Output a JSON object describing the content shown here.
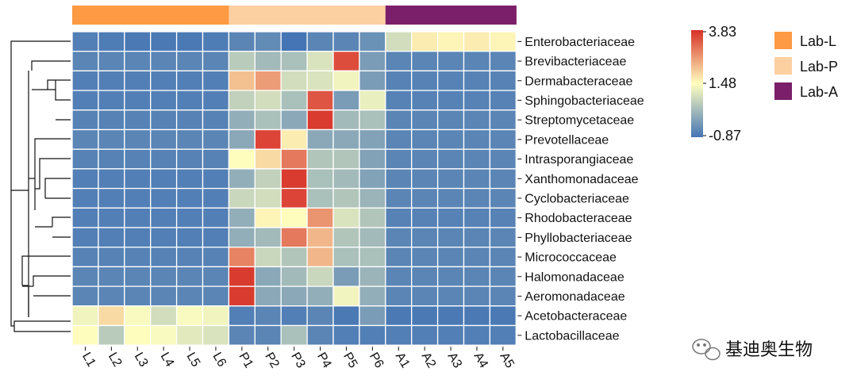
{
  "chart_data": {
    "type": "heatmap",
    "title": "",
    "columns": [
      "L1",
      "L2",
      "L3",
      "L4",
      "L5",
      "L6",
      "P1",
      "P2",
      "P3",
      "P4",
      "P5",
      "P6",
      "A1",
      "A2",
      "A3",
      "A4",
      "A5"
    ],
    "column_groups": [
      "Lab-L",
      "Lab-L",
      "Lab-L",
      "Lab-L",
      "Lab-L",
      "Lab-L",
      "Lab-P",
      "Lab-P",
      "Lab-P",
      "Lab-P",
      "Lab-P",
      "Lab-P",
      "Lab-A",
      "Lab-A",
      "Lab-A",
      "Lab-A",
      "Lab-A"
    ],
    "rows": [
      "Enterobacteriaceae",
      "Brevibacteriaceae",
      "Dermabacteraceae",
      "Sphingobacteriaceae",
      "Streptomycetaceae",
      "Prevotellaceae",
      "Intrasporangiaceae",
      "Xanthomonadaceae",
      "Cyclobacteriaceae",
      "Rhodobacteraceae",
      "Phyllobacteriaceae",
      "Micrococcaceae",
      "Halomonadaceae",
      "Aeromonadaceae",
      "Acetobacteraceae",
      "Lactobacillaceae"
    ],
    "values": [
      [
        -0.7,
        -0.75,
        -0.8,
        -0.8,
        -0.8,
        -0.75,
        -0.6,
        -0.5,
        -0.87,
        -0.6,
        -0.6,
        -0.4,
        0.9,
        1.7,
        1.6,
        1.7,
        1.6
      ],
      [
        -0.6,
        -0.6,
        -0.6,
        -0.6,
        -0.6,
        -0.6,
        0.6,
        0.3,
        0.4,
        1.0,
        3.5,
        -0.2,
        -0.6,
        -0.6,
        -0.6,
        -0.6,
        -0.6
      ],
      [
        -0.7,
        -0.7,
        -0.7,
        -0.7,
        -0.7,
        -0.7,
        2.2,
        2.6,
        0.9,
        1.0,
        1.3,
        -0.2,
        -0.65,
        -0.65,
        -0.65,
        -0.65,
        -0.65
      ],
      [
        -0.7,
        -0.7,
        -0.7,
        -0.7,
        -0.7,
        -0.7,
        0.7,
        0.9,
        0.4,
        3.4,
        -0.2,
        1.2,
        -0.65,
        -0.65,
        -0.65,
        -0.65,
        -0.65
      ],
      [
        -0.65,
        -0.65,
        -0.65,
        -0.65,
        -0.65,
        -0.65,
        0.1,
        0.4,
        0.0,
        3.7,
        0.3,
        0.4,
        -0.6,
        -0.6,
        -0.6,
        -0.6,
        -0.6
      ],
      [
        -0.6,
        -0.6,
        -0.6,
        -0.6,
        -0.6,
        -0.6,
        0.0,
        3.6,
        1.7,
        0.0,
        0.0,
        -0.1,
        -0.6,
        -0.6,
        -0.6,
        -0.6,
        -0.6
      ],
      [
        -0.65,
        -0.65,
        -0.65,
        -0.65,
        -0.65,
        -0.65,
        1.5,
        1.9,
        3.0,
        0.5,
        0.5,
        -0.1,
        -0.6,
        -0.6,
        -0.6,
        -0.6,
        -0.6
      ],
      [
        -0.7,
        -0.7,
        -0.7,
        -0.7,
        -0.7,
        -0.7,
        0.1,
        0.7,
        3.7,
        0.4,
        0.3,
        -0.1,
        -0.6,
        -0.6,
        -0.6,
        -0.6,
        -0.6
      ],
      [
        -0.7,
        -0.7,
        -0.7,
        -0.7,
        -0.7,
        -0.7,
        0.8,
        0.9,
        3.6,
        0.4,
        0.5,
        0.2,
        -0.6,
        -0.6,
        -0.6,
        -0.6,
        -0.6
      ],
      [
        -0.7,
        -0.7,
        -0.7,
        -0.7,
        -0.7,
        -0.7,
        0.1,
        1.6,
        1.5,
        2.7,
        1.0,
        0.5,
        -0.65,
        -0.65,
        -0.65,
        -0.65,
        -0.65
      ],
      [
        -0.7,
        -0.7,
        -0.7,
        -0.7,
        -0.7,
        -0.7,
        0.1,
        0.3,
        3.0,
        2.3,
        0.5,
        0.3,
        -0.6,
        -0.6,
        -0.6,
        -0.6,
        -0.6
      ],
      [
        -0.65,
        -0.65,
        -0.65,
        -0.65,
        -0.65,
        -0.65,
        2.9,
        0.8,
        0.5,
        2.3,
        0.4,
        0.4,
        -0.6,
        -0.6,
        -0.6,
        -0.6,
        -0.6
      ],
      [
        -0.6,
        -0.6,
        -0.6,
        -0.6,
        -0.6,
        -0.6,
        3.7,
        0.0,
        0.3,
        0.8,
        -0.2,
        0.2,
        -0.6,
        -0.6,
        -0.6,
        -0.6,
        -0.6
      ],
      [
        -0.6,
        -0.6,
        -0.6,
        -0.6,
        -0.6,
        -0.6,
        3.7,
        0.0,
        0.0,
        0.1,
        1.3,
        0.1,
        -0.6,
        -0.6,
        -0.6,
        -0.6,
        -0.6
      ],
      [
        1.3,
        1.9,
        1.4,
        0.9,
        1.4,
        1.3,
        -0.7,
        -0.6,
        -0.7,
        -0.6,
        -0.8,
        -0.2,
        -0.8,
        -0.8,
        -0.8,
        -0.8,
        -0.8
      ],
      [
        1.5,
        0.6,
        1.5,
        1.4,
        1.1,
        1.0,
        -0.6,
        -0.6,
        0.4,
        -0.6,
        -0.7,
        -0.7,
        -0.7,
        -0.7,
        -0.7,
        -0.7,
        -0.7
      ]
    ],
    "colorbar": {
      "min": -0.87,
      "mid": 1.48,
      "max": 3.83,
      "tick_labels": [
        "3.83",
        "1.48",
        "-0.87"
      ],
      "colors": [
        "#4575b4",
        "#ffffbf",
        "#d73027"
      ]
    },
    "legend": {
      "placement": "top-right",
      "items": [
        {
          "label": "Lab-L",
          "color": "#fd9a43"
        },
        {
          "label": "Lab-P",
          "color": "#fdd0a2"
        },
        {
          "label": "Lab-A",
          "color": "#7b1f6a"
        }
      ]
    },
    "row_dendrogram": true
  },
  "watermark": {
    "text": "基迪奥生物",
    "icon": "wechat-icon"
  }
}
